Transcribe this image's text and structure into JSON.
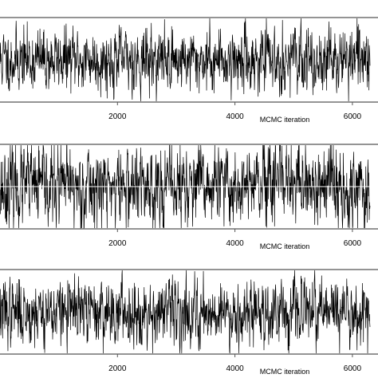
{
  "chart_data": [
    {
      "type": "line",
      "title": "",
      "xlabel": "MCMC iteration",
      "ylabel": "",
      "xlim": [
        0,
        6300
      ],
      "x_ticks": [
        2000,
        4000,
        6000
      ],
      "x_tick_labels": [
        "2000",
        "4000",
        "6000"
      ],
      "grid": false,
      "series": [
        {
          "points": 1400,
          "mean": 0.0,
          "spread": 0.34,
          "seed": 11
        }
      ]
    },
    {
      "type": "line",
      "title": "",
      "xlabel": "MCMC iteration",
      "ylabel": "",
      "xlim": [
        0,
        6300
      ],
      "x_ticks": [
        2000,
        4000,
        6000
      ],
      "x_tick_labels": [
        "2000",
        "4000",
        "6000"
      ],
      "grid": false,
      "reference_line": {
        "value": 0.0,
        "color": "#ffffff"
      },
      "series": [
        {
          "points": 1400,
          "mean": 0.0,
          "spread": 0.45,
          "seed": 23
        }
      ]
    },
    {
      "type": "line",
      "title": "",
      "xlabel": "MCMC iteration",
      "ylabel": "",
      "xlim": [
        0,
        6300
      ],
      "x_ticks": [
        2000,
        4000,
        6000
      ],
      "x_tick_labels": [
        "2000",
        "4000",
        "6000"
      ],
      "grid": false,
      "series": [
        {
          "points": 1400,
          "mean": 0.0,
          "spread": 0.36,
          "seed": 37
        }
      ]
    }
  ],
  "colors": {
    "trace": "#000000",
    "frame": "#555555",
    "reference": "#ffffff"
  }
}
